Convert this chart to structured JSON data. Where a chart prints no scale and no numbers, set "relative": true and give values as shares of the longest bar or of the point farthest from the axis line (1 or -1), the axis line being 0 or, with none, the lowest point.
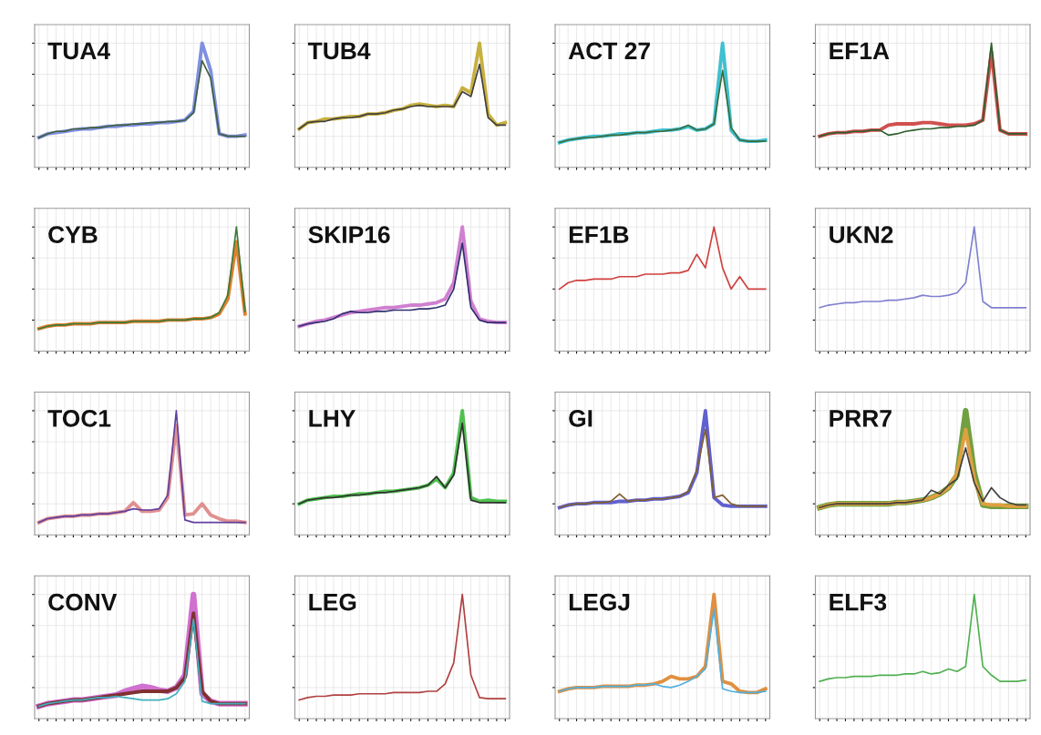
{
  "chart_data": [
    {
      "type": "line",
      "title": "TUA4",
      "relative": true,
      "grid": true,
      "tick_labels": false,
      "categories": [
        null,
        null,
        null,
        null,
        null,
        null,
        null,
        null,
        null,
        null,
        null,
        null,
        null,
        null,
        null,
        null,
        null,
        null,
        null,
        null,
        null,
        null,
        null,
        null,
        null
      ],
      "series": [
        {
          "color": "#8090e0",
          "values": [
            0.24,
            0.27,
            0.28,
            0.29,
            0.3,
            0.31,
            0.31,
            0.32,
            0.33,
            0.33,
            0.34,
            0.34,
            0.35,
            0.35,
            0.36,
            0.36,
            0.37,
            0.38,
            0.45,
            1.0,
            0.78,
            0.27,
            0.25,
            0.25,
            0.26
          ]
        },
        {
          "color": "#3f5f3f",
          "values": [
            0.24,
            0.27,
            0.29,
            0.29,
            0.31,
            0.31,
            0.32,
            0.32,
            0.33,
            0.34,
            0.34,
            0.35,
            0.35,
            0.36,
            0.36,
            0.37,
            0.37,
            0.38,
            0.44,
            0.86,
            0.72,
            0.27,
            0.25,
            0.25,
            0.25
          ]
        }
      ]
    },
    {
      "type": "line",
      "title": "TUB4",
      "relative": true,
      "grid": true,
      "tick_labels": false,
      "categories": [
        null,
        null,
        null,
        null,
        null,
        null,
        null,
        null,
        null,
        null,
        null,
        null,
        null,
        null,
        null,
        null,
        null,
        null,
        null,
        null,
        null,
        null,
        null,
        null,
        null
      ],
      "series": [
        {
          "color": "#c8b040",
          "values": [
            0.31,
            0.36,
            0.37,
            0.39,
            0.39,
            0.4,
            0.41,
            0.41,
            0.43,
            0.43,
            0.44,
            0.46,
            0.47,
            0.5,
            0.51,
            0.5,
            0.49,
            0.5,
            0.49,
            0.64,
            0.6,
            1.0,
            0.43,
            0.34,
            0.36
          ]
        },
        {
          "color": "#404040",
          "values": [
            0.31,
            0.36,
            0.37,
            0.37,
            0.39,
            0.4,
            0.4,
            0.41,
            0.43,
            0.43,
            0.44,
            0.46,
            0.47,
            0.49,
            0.5,
            0.49,
            0.49,
            0.49,
            0.49,
            0.61,
            0.57,
            0.83,
            0.4,
            0.34,
            0.34
          ]
        }
      ]
    },
    {
      "type": "line",
      "title": "ACT 27",
      "relative": true,
      "grid": true,
      "tick_labels": false,
      "categories": [
        null,
        null,
        null,
        null,
        null,
        null,
        null,
        null,
        null,
        null,
        null,
        null,
        null,
        null,
        null,
        null,
        null,
        null,
        null,
        null,
        null,
        null,
        null,
        null,
        null
      ],
      "series": [
        {
          "color": "#40c0d0",
          "values": [
            0.2,
            0.22,
            0.23,
            0.24,
            0.25,
            0.25,
            0.26,
            0.27,
            0.27,
            0.28,
            0.28,
            0.29,
            0.3,
            0.3,
            0.31,
            0.33,
            0.3,
            0.31,
            0.35,
            1.0,
            0.3,
            0.22,
            0.21,
            0.21,
            0.22
          ]
        },
        {
          "color": "#3c6b3c",
          "values": [
            0.2,
            0.22,
            0.23,
            0.24,
            0.24,
            0.25,
            0.26,
            0.26,
            0.27,
            0.28,
            0.28,
            0.29,
            0.29,
            0.3,
            0.31,
            0.34,
            0.3,
            0.31,
            0.35,
            0.78,
            0.32,
            0.22,
            0.21,
            0.21,
            0.21
          ]
        }
      ]
    },
    {
      "type": "line",
      "title": "EF1A",
      "relative": true,
      "grid": true,
      "tick_labels": false,
      "categories": [
        null,
        null,
        null,
        null,
        null,
        null,
        null,
        null,
        null,
        null,
        null,
        null,
        null,
        null,
        null,
        null,
        null,
        null,
        null,
        null,
        null,
        null,
        null,
        null,
        null
      ],
      "series": [
        {
          "color": "#d05050",
          "values": [
            0.25,
            0.27,
            0.28,
            0.28,
            0.29,
            0.29,
            0.3,
            0.3,
            0.34,
            0.35,
            0.35,
            0.35,
            0.36,
            0.36,
            0.35,
            0.34,
            0.34,
            0.34,
            0.35,
            0.38,
            0.93,
            0.3,
            0.27,
            0.27,
            0.27
          ]
        },
        {
          "color": "#2e5e2e",
          "values": [
            0.25,
            0.27,
            0.28,
            0.28,
            0.29,
            0.29,
            0.3,
            0.3,
            0.26,
            0.27,
            0.29,
            0.3,
            0.31,
            0.31,
            0.32,
            0.32,
            0.33,
            0.33,
            0.34,
            0.38,
            1.0,
            0.3,
            0.27,
            0.27,
            0.27
          ]
        }
      ]
    },
    {
      "type": "line",
      "title": "CYB",
      "relative": true,
      "grid": true,
      "tick_labels": false,
      "categories": [
        null,
        null,
        null,
        null,
        null,
        null,
        null,
        null,
        null,
        null,
        null,
        null,
        null,
        null,
        null,
        null,
        null,
        null,
        null,
        null,
        null,
        null,
        null,
        null,
        null
      ],
      "series": [
        {
          "color": "#e08030",
          "values": [
            0.18,
            0.2,
            0.21,
            0.21,
            0.22,
            0.22,
            0.22,
            0.23,
            0.23,
            0.23,
            0.23,
            0.24,
            0.24,
            0.24,
            0.24,
            0.25,
            0.25,
            0.25,
            0.26,
            0.26,
            0.27,
            0.3,
            0.42,
            0.88,
            0.3
          ]
        },
        {
          "color": "#3a7a3a",
          "values": [
            0.18,
            0.2,
            0.21,
            0.21,
            0.22,
            0.22,
            0.22,
            0.23,
            0.23,
            0.23,
            0.23,
            0.24,
            0.24,
            0.24,
            0.24,
            0.25,
            0.25,
            0.25,
            0.26,
            0.26,
            0.27,
            0.31,
            0.45,
            1.0,
            0.32
          ]
        }
      ]
    },
    {
      "type": "line",
      "title": "SKIP16",
      "relative": true,
      "grid": true,
      "tick_labels": false,
      "categories": [
        null,
        null,
        null,
        null,
        null,
        null,
        null,
        null,
        null,
        null,
        null,
        null,
        null,
        null,
        null,
        null,
        null,
        null,
        null,
        null,
        null,
        null,
        null,
        null,
        null
      ],
      "series": [
        {
          "color": "#d080d0",
          "values": [
            0.2,
            0.22,
            0.24,
            0.25,
            0.27,
            0.29,
            0.31,
            0.32,
            0.33,
            0.34,
            0.35,
            0.35,
            0.36,
            0.37,
            0.37,
            0.38,
            0.39,
            0.42,
            0.55,
            1.0,
            0.4,
            0.26,
            0.24,
            0.23,
            0.23
          ]
        },
        {
          "color": "#303070",
          "values": [
            0.2,
            0.22,
            0.23,
            0.24,
            0.26,
            0.3,
            0.32,
            0.31,
            0.31,
            0.32,
            0.32,
            0.33,
            0.33,
            0.33,
            0.34,
            0.34,
            0.35,
            0.37,
            0.5,
            0.87,
            0.35,
            0.25,
            0.23,
            0.23,
            0.23
          ]
        }
      ]
    },
    {
      "type": "line",
      "title": "EF1B",
      "relative": true,
      "grid": true,
      "tick_labels": false,
      "categories": [
        null,
        null,
        null,
        null,
        null,
        null,
        null,
        null,
        null,
        null,
        null,
        null,
        null,
        null,
        null,
        null,
        null,
        null,
        null,
        null,
        null,
        null,
        null,
        null,
        null
      ],
      "series": [
        {
          "color": "#d04040",
          "values": [
            0.5,
            0.55,
            0.57,
            0.57,
            0.58,
            0.58,
            0.58,
            0.6,
            0.6,
            0.6,
            0.62,
            0.62,
            0.62,
            0.63,
            0.63,
            0.65,
            0.78,
            0.67,
            1.0,
            0.67,
            0.5,
            0.6,
            0.5,
            0.5,
            0.5
          ]
        }
      ]
    },
    {
      "type": "line",
      "title": "UKN2",
      "relative": true,
      "grid": true,
      "tick_labels": false,
      "categories": [
        null,
        null,
        null,
        null,
        null,
        null,
        null,
        null,
        null,
        null,
        null,
        null,
        null,
        null,
        null,
        null,
        null,
        null,
        null,
        null,
        null,
        null,
        null,
        null,
        null
      ],
      "series": [
        {
          "color": "#8080d0",
          "values": [
            0.35,
            0.37,
            0.38,
            0.39,
            0.39,
            0.4,
            0.4,
            0.4,
            0.41,
            0.41,
            0.42,
            0.43,
            0.45,
            0.44,
            0.44,
            0.45,
            0.47,
            0.55,
            1.0,
            0.4,
            0.35,
            0.35,
            0.35,
            0.35,
            0.35
          ]
        }
      ]
    },
    {
      "type": "line",
      "title": "TOC1",
      "relative": true,
      "grid": true,
      "tick_labels": false,
      "categories": [
        null,
        null,
        null,
        null,
        null,
        null,
        null,
        null,
        null,
        null,
        null,
        null,
        null,
        null,
        null,
        null,
        null,
        null,
        null,
        null,
        null,
        null,
        null,
        null,
        null
      ],
      "series": [
        {
          "color": "#e09090",
          "values": [
            0.1,
            0.13,
            0.14,
            0.15,
            0.15,
            0.16,
            0.16,
            0.17,
            0.17,
            0.18,
            0.19,
            0.26,
            0.19,
            0.19,
            0.2,
            0.3,
            0.88,
            0.16,
            0.17,
            0.25,
            0.16,
            0.13,
            0.11,
            0.11,
            0.1
          ]
        },
        {
          "color": "#6040a0",
          "values": [
            0.1,
            0.13,
            0.14,
            0.15,
            0.15,
            0.16,
            0.16,
            0.17,
            0.17,
            0.18,
            0.19,
            0.21,
            0.2,
            0.2,
            0.21,
            0.32,
            1.0,
            0.12,
            0.1,
            0.1,
            0.1,
            0.1,
            0.1,
            0.1,
            0.1
          ]
        }
      ]
    },
    {
      "type": "line",
      "title": "LHY",
      "relative": true,
      "grid": true,
      "tick_labels": false,
      "categories": [
        null,
        null,
        null,
        null,
        null,
        null,
        null,
        null,
        null,
        null,
        null,
        null,
        null,
        null,
        null,
        null,
        null,
        null,
        null,
        null,
        null,
        null,
        null,
        null,
        null
      ],
      "series": [
        {
          "color": "#50c050",
          "values": [
            0.25,
            0.28,
            0.29,
            0.3,
            0.31,
            0.31,
            0.32,
            0.33,
            0.33,
            0.34,
            0.35,
            0.35,
            0.36,
            0.37,
            0.38,
            0.4,
            0.45,
            0.38,
            0.5,
            1.0,
            0.3,
            0.27,
            0.28,
            0.27,
            0.27
          ]
        },
        {
          "color": "#303030",
          "values": [
            0.25,
            0.28,
            0.29,
            0.3,
            0.3,
            0.31,
            0.32,
            0.32,
            0.33,
            0.34,
            0.34,
            0.35,
            0.36,
            0.37,
            0.38,
            0.4,
            0.47,
            0.38,
            0.48,
            0.9,
            0.28,
            0.26,
            0.26,
            0.26,
            0.26
          ]
        }
      ]
    },
    {
      "type": "line",
      "title": "GI",
      "relative": true,
      "grid": true,
      "tick_labels": false,
      "categories": [
        null,
        null,
        null,
        null,
        null,
        null,
        null,
        null,
        null,
        null,
        null,
        null,
        null,
        null,
        null,
        null,
        null,
        null,
        null,
        null,
        null,
        null,
        null,
        null,
        null
      ],
      "series": [
        {
          "color": "#6060d0",
          "values": [
            0.22,
            0.24,
            0.25,
            0.25,
            0.26,
            0.26,
            0.26,
            0.27,
            0.27,
            0.28,
            0.28,
            0.29,
            0.29,
            0.3,
            0.31,
            0.34,
            0.5,
            1.0,
            0.3,
            0.24,
            0.23,
            0.23,
            0.23,
            0.23,
            0.23
          ]
        },
        {
          "color": "#806030",
          "values": [
            0.22,
            0.24,
            0.25,
            0.25,
            0.26,
            0.26,
            0.27,
            0.33,
            0.27,
            0.28,
            0.28,
            0.29,
            0.29,
            0.3,
            0.31,
            0.35,
            0.52,
            0.85,
            0.3,
            0.32,
            0.25,
            0.23,
            0.23,
            0.23,
            0.23
          ]
        }
      ]
    },
    {
      "type": "line",
      "title": "PRR7",
      "relative": true,
      "grid": true,
      "tick_labels": false,
      "categories": [
        null,
        null,
        null,
        null,
        null,
        null,
        null,
        null,
        null,
        null,
        null,
        null,
        null,
        null,
        null,
        null,
        null,
        null,
        null,
        null,
        null,
        null,
        null,
        null,
        null
      ],
      "series": [
        {
          "color": "#70a040",
          "values": [
            0.22,
            0.24,
            0.25,
            0.25,
            0.25,
            0.25,
            0.25,
            0.25,
            0.25,
            0.26,
            0.26,
            0.27,
            0.28,
            0.3,
            0.33,
            0.38,
            0.48,
            1.0,
            0.5,
            0.24,
            0.23,
            0.23,
            0.23,
            0.23,
            0.23
          ]
        },
        {
          "color": "#e0a040",
          "values": [
            0.22,
            0.24,
            0.25,
            0.25,
            0.25,
            0.25,
            0.25,
            0.25,
            0.25,
            0.26,
            0.26,
            0.27,
            0.28,
            0.3,
            0.33,
            0.38,
            0.5,
            0.85,
            0.45,
            0.25,
            0.24,
            0.24,
            0.23,
            0.23,
            0.23
          ]
        },
        {
          "color": "#404040",
          "values": [
            0.22,
            0.24,
            0.25,
            0.25,
            0.25,
            0.25,
            0.25,
            0.25,
            0.25,
            0.26,
            0.26,
            0.27,
            0.28,
            0.36,
            0.33,
            0.4,
            0.45,
            0.7,
            0.42,
            0.27,
            0.38,
            0.3,
            0.26,
            0.24,
            0.24
          ]
        }
      ]
    },
    {
      "type": "line",
      "title": "CONV",
      "relative": true,
      "grid": true,
      "tick_labels": false,
      "categories": [
        null,
        null,
        null,
        null,
        null,
        null,
        null,
        null,
        null,
        null,
        null,
        null,
        null,
        null,
        null,
        null,
        null,
        null,
        null,
        null,
        null,
        null,
        null,
        null,
        null
      ],
      "series": [
        {
          "color": "#d070d0",
          "values": [
            0.1,
            0.12,
            0.13,
            0.14,
            0.15,
            0.15,
            0.16,
            0.17,
            0.18,
            0.19,
            0.22,
            0.24,
            0.26,
            0.25,
            0.23,
            0.22,
            0.25,
            0.35,
            1.0,
            0.2,
            0.14,
            0.12,
            0.12,
            0.12,
            0.12
          ]
        },
        {
          "color": "#803030",
          "values": [
            0.1,
            0.12,
            0.13,
            0.14,
            0.15,
            0.15,
            0.16,
            0.17,
            0.18,
            0.19,
            0.2,
            0.21,
            0.22,
            0.22,
            0.22,
            0.22,
            0.25,
            0.33,
            0.85,
            0.22,
            0.14,
            0.12,
            0.12,
            0.12,
            0.12
          ]
        },
        {
          "color": "#40b0c0",
          "values": [
            0.1,
            0.12,
            0.13,
            0.14,
            0.15,
            0.15,
            0.16,
            0.17,
            0.17,
            0.18,
            0.17,
            0.16,
            0.15,
            0.15,
            0.15,
            0.16,
            0.2,
            0.3,
            0.8,
            0.14,
            0.12,
            0.12,
            0.12,
            0.12,
            0.12
          ]
        }
      ]
    },
    {
      "type": "line",
      "title": "LEG",
      "relative": true,
      "grid": true,
      "tick_labels": false,
      "categories": [
        null,
        null,
        null,
        null,
        null,
        null,
        null,
        null,
        null,
        null,
        null,
        null,
        null,
        null,
        null,
        null,
        null,
        null,
        null,
        null,
        null,
        null,
        null,
        null,
        null
      ],
      "series": [
        {
          "color": "#b04040",
          "values": [
            0.15,
            0.17,
            0.18,
            0.18,
            0.19,
            0.19,
            0.19,
            0.2,
            0.2,
            0.2,
            0.2,
            0.21,
            0.21,
            0.21,
            0.21,
            0.22,
            0.22,
            0.28,
            0.45,
            1.0,
            0.35,
            0.17,
            0.16,
            0.16,
            0.16
          ]
        }
      ]
    },
    {
      "type": "line",
      "title": "LEGJ",
      "relative": true,
      "grid": true,
      "tick_labels": false,
      "categories": [
        null,
        null,
        null,
        null,
        null,
        null,
        null,
        null,
        null,
        null,
        null,
        null,
        null,
        null,
        null,
        null,
        null,
        null,
        null,
        null,
        null,
        null,
        null,
        null,
        null
      ],
      "series": [
        {
          "color": "#e09040",
          "values": [
            0.22,
            0.24,
            0.25,
            0.25,
            0.25,
            0.26,
            0.26,
            0.26,
            0.26,
            0.27,
            0.27,
            0.28,
            0.3,
            0.34,
            0.32,
            0.32,
            0.34,
            0.42,
            1.0,
            0.3,
            0.28,
            0.22,
            0.21,
            0.21,
            0.24
          ]
        },
        {
          "color": "#50b0e0",
          "values": [
            0.22,
            0.24,
            0.25,
            0.25,
            0.25,
            0.26,
            0.26,
            0.26,
            0.26,
            0.27,
            0.27,
            0.28,
            0.26,
            0.25,
            0.27,
            0.3,
            0.34,
            0.4,
            0.88,
            0.24,
            0.22,
            0.21,
            0.21,
            0.21,
            0.22
          ]
        }
      ]
    },
    {
      "type": "line",
      "title": "ELF3",
      "relative": true,
      "grid": true,
      "tick_labels": false,
      "categories": [
        null,
        null,
        null,
        null,
        null,
        null,
        null,
        null,
        null,
        null,
        null,
        null,
        null,
        null,
        null,
        null,
        null,
        null,
        null,
        null,
        null,
        null,
        null,
        null,
        null
      ],
      "series": [
        {
          "color": "#50b050",
          "values": [
            0.3,
            0.32,
            0.33,
            0.33,
            0.34,
            0.34,
            0.34,
            0.35,
            0.35,
            0.35,
            0.36,
            0.36,
            0.38,
            0.36,
            0.37,
            0.4,
            0.38,
            0.42,
            1.0,
            0.42,
            0.35,
            0.3,
            0.3,
            0.3,
            0.31
          ]
        }
      ]
    }
  ]
}
